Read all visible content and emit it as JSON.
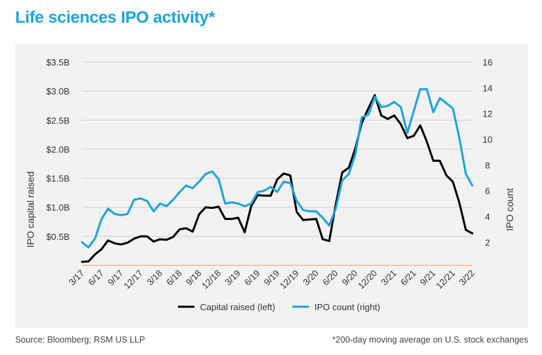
{
  "title": "Life sciences IPO activity*",
  "source": "Source: Bloomberg; RSM US LLP",
  "footnote": "*200-day moving average on U.S. stock exchanges",
  "chart_data": {
    "type": "line",
    "ylabel_left": "IPO capital raised",
    "ylabel_right": "IPO count",
    "yticks_left": [
      "$0.5B",
      "$1.0B",
      "$1.5B",
      "$2.0B",
      "$2.5B",
      "$3.0B",
      "$3.5B"
    ],
    "yticks_left_values": [
      0.5,
      1.0,
      1.5,
      2.0,
      2.5,
      3.0,
      3.5
    ],
    "ylim_left": [
      0,
      3.5
    ],
    "yticks_right": [
      "2",
      "4",
      "6",
      "8",
      "10",
      "12",
      "14",
      "16"
    ],
    "yticks_right_values": [
      2,
      4,
      6,
      8,
      10,
      12,
      14,
      16
    ],
    "ylim_right": [
      0.2,
      16
    ],
    "xticks": [
      "3/17",
      "6/17",
      "9/17",
      "12/17",
      "3/18",
      "6/18",
      "9/18",
      "12/18",
      "3/19",
      "6/19",
      "9/19",
      "12/19",
      "3/20",
      "6/20",
      "9/20",
      "12/20",
      "3/21",
      "6/21",
      "9/21",
      "12/21",
      "3/22"
    ],
    "xlim": [
      0,
      60
    ],
    "grid": true,
    "legend_position": "bottom",
    "series": [
      {
        "name": "Capital raised (left)",
        "axis": "left",
        "color": "#000000",
        "x": [
          0,
          1,
          2,
          3,
          4,
          5,
          6,
          7,
          8,
          9,
          10,
          11,
          12,
          13,
          14,
          15,
          16,
          17,
          18,
          19,
          20,
          21,
          22,
          23,
          24,
          25,
          26,
          27,
          28,
          29,
          30,
          31,
          32,
          33,
          34,
          35,
          36,
          37,
          38,
          39,
          40,
          41,
          42,
          43,
          44,
          45,
          46,
          47,
          48,
          49,
          50,
          51,
          52,
          53,
          54,
          55,
          56,
          57,
          58,
          59,
          60
        ],
        "values": [
          0.06,
          0.07,
          0.19,
          0.28,
          0.43,
          0.38,
          0.36,
          0.39,
          0.46,
          0.5,
          0.5,
          0.41,
          0.45,
          0.44,
          0.49,
          0.62,
          0.64,
          0.58,
          0.88,
          1.0,
          0.99,
          1.01,
          0.8,
          0.8,
          0.82,
          0.57,
          1.02,
          1.21,
          1.2,
          1.2,
          1.48,
          1.58,
          1.55,
          0.92,
          0.78,
          0.79,
          0.8,
          0.45,
          0.42,
          1.05,
          1.6,
          1.68,
          2.01,
          2.45,
          2.7,
          2.93,
          2.58,
          2.52,
          2.58,
          2.43,
          2.19,
          2.23,
          2.41,
          2.13,
          1.8,
          1.8,
          1.55,
          1.44,
          1.08,
          0.61,
          0.55
        ]
      },
      {
        "name": "IPO count (right)",
        "axis": "right",
        "color": "#1ba3dc",
        "x": [
          0,
          1,
          2,
          3,
          4,
          5,
          6,
          7,
          8,
          9,
          10,
          11,
          12,
          13,
          14,
          15,
          16,
          17,
          18,
          19,
          20,
          21,
          22,
          23,
          24,
          25,
          26,
          27,
          28,
          29,
          30,
          31,
          32,
          33,
          34,
          35,
          36,
          37,
          38,
          39,
          40,
          41,
          42,
          43,
          44,
          45,
          46,
          47,
          48,
          49,
          50,
          51,
          52,
          53,
          54,
          55,
          56,
          57,
          58,
          59,
          60
        ],
        "values": [
          2.0,
          1.6,
          2.3,
          3.8,
          4.6,
          4.2,
          4.1,
          4.2,
          5.3,
          5.4,
          5.2,
          4.4,
          5.0,
          4.8,
          5.3,
          5.9,
          6.4,
          6.2,
          6.7,
          7.3,
          7.5,
          6.9,
          5.0,
          5.1,
          5.0,
          4.8,
          5.0,
          5.9,
          6.0,
          6.3,
          5.9,
          6.7,
          6.6,
          5.2,
          4.5,
          4.4,
          4.4,
          3.9,
          3.3,
          4.6,
          6.8,
          7.3,
          8.8,
          11.7,
          11.9,
          13.3,
          12.5,
          12.6,
          12.9,
          12.5,
          10.5,
          12.2,
          13.9,
          13.9,
          12.1,
          13.2,
          12.8,
          12.4,
          10.1,
          7.3,
          6.4
        ]
      }
    ]
  }
}
